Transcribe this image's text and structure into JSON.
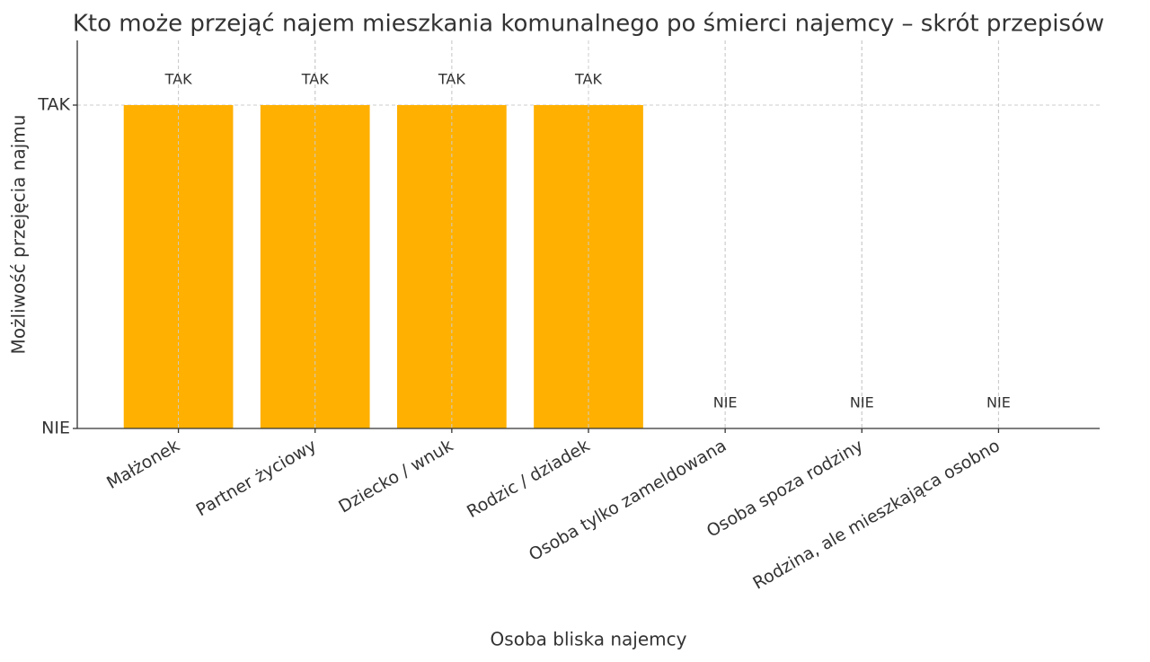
{
  "chart_data": {
    "type": "bar",
    "title": "Kto może przejąć najem mieszkania komunalnego po śmierci najemcy – skrót przepisów",
    "x_label": "Osoba bliska najemcy",
    "y_label": "Możliwość przejęcia najmu",
    "categories": [
      "Małżonek",
      "Partner życiowy",
      "Dziecko / wnuk",
      "Rodzic / dziadek",
      "Osoba tylko zameldowana",
      "Osoba spoza rodziny",
      "Rodzina, ale mieszkająca osobno"
    ],
    "values": [
      1,
      1,
      1,
      1,
      0,
      0,
      0
    ],
    "value_labels": [
      "TAK",
      "TAK",
      "TAK",
      "TAK",
      "NIE",
      "NIE",
      "NIE"
    ],
    "color": "#ffb000",
    "ylim": [
      0,
      1.2
    ],
    "yticks": [
      {
        "value": 0,
        "label": "NIE"
      },
      {
        "value": 1,
        "label": "TAK"
      }
    ],
    "grid": true
  }
}
